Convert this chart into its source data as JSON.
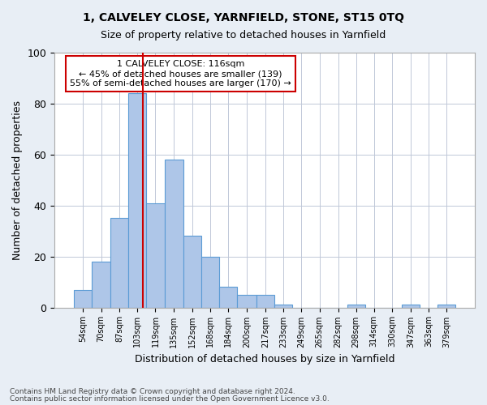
{
  "title1": "1, CALVELEY CLOSE, YARNFIELD, STONE, ST15 0TQ",
  "title2": "Size of property relative to detached houses in Yarnfield",
  "xlabel": "Distribution of detached houses by size in Yarnfield",
  "ylabel": "Number of detached properties",
  "bin_edges": [
    54,
    70,
    87,
    103,
    119,
    135,
    152,
    168,
    184,
    200,
    217,
    233,
    249,
    265,
    282,
    298,
    314,
    330,
    347,
    363,
    379,
    395
  ],
  "bar_heights": [
    7,
    18,
    35,
    84,
    41,
    58,
    28,
    20,
    8,
    5,
    5,
    1,
    0,
    0,
    0,
    1,
    0,
    0,
    1,
    0,
    1
  ],
  "bar_color": "#aec6e8",
  "bar_edgecolor": "#5b9bd5",
  "red_line_x": 116,
  "red_line_color": "#cc0000",
  "annotation_text": "1 CALVELEY CLOSE: 116sqm\n← 45% of detached houses are smaller (139)\n55% of semi-detached houses are larger (170) →",
  "annotation_box_edgecolor": "#cc0000",
  "ylim": [
    0,
    100
  ],
  "tick_labels": [
    "54sqm",
    "70sqm",
    "87sqm",
    "103sqm",
    "119sqm",
    "135sqm",
    "152sqm",
    "168sqm",
    "184sqm",
    "200sqm",
    "217sqm",
    "233sqm",
    "249sqm",
    "265sqm",
    "282sqm",
    "298sqm",
    "314sqm",
    "330sqm",
    "347sqm",
    "363sqm",
    "379sqm"
  ],
  "footnote1": "Contains HM Land Registry data © Crown copyright and database right 2024.",
  "footnote2": "Contains public sector information licensed under the Open Government Licence v3.0.",
  "bg_color": "#e8eef5",
  "axes_bg_color": "#ffffff",
  "grid_color": "#c0c8d8"
}
